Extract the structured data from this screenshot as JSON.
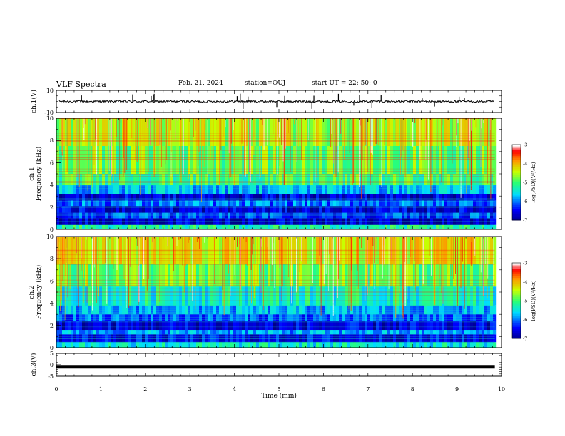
{
  "header": {
    "title": "VLF Spectra",
    "date": "Feb. 21, 2024",
    "station": "station=OUJ",
    "start": "start  UT  =   22: 50: 0"
  },
  "chart_data": [
    {
      "type": "line",
      "panel": "ch1-waveform",
      "ylabel": "ch.1(V)",
      "ylim": [
        -10,
        10
      ],
      "yticks": [
        "10",
        "-10"
      ],
      "description_values": {
        "baseline_v": 0,
        "typical_amplitude_v": 2,
        "spike_amplitude_v": 7
      },
      "x": [
        0,
        10
      ]
    },
    {
      "type": "heatmap",
      "panel": "ch1-spectrogram",
      "ylabel": "ch.1\nFrequency (kHz)",
      "ylim": [
        0,
        10
      ],
      "yticks": [
        "0",
        "2",
        "4",
        "6",
        "8",
        "10"
      ],
      "xlim": [
        0,
        9.85
      ],
      "colorbar": {
        "label": "log(PSD)(V²/Hz)",
        "range": [
          -7,
          -3
        ],
        "ticks": [
          "-3",
          "-4",
          "-5",
          "-6",
          "-7"
        ]
      },
      "bands_khz": [
        {
          "from": 0.0,
          "to": 0.4,
          "level": -5.2
        },
        {
          "from": 0.4,
          "to": 1.0,
          "level": -6.7
        },
        {
          "from": 1.0,
          "to": 1.5,
          "level": -6.2
        },
        {
          "from": 1.5,
          "to": 2.1,
          "level": -6.6
        },
        {
          "from": 2.1,
          "to": 2.6,
          "level": -6.0
        },
        {
          "from": 2.6,
          "to": 3.2,
          "level": -6.6
        },
        {
          "from": 3.2,
          "to": 4.0,
          "level": -5.7
        },
        {
          "from": 4.0,
          "to": 5.0,
          "level": -5.0
        },
        {
          "from": 5.0,
          "to": 7.5,
          "level": -4.8
        },
        {
          "from": 7.5,
          "to": 10.0,
          "level": -4.5
        }
      ]
    },
    {
      "type": "heatmap",
      "panel": "ch2-spectrogram",
      "ylabel": "ch.2\nFrequency (kHz)",
      "ylim": [
        0,
        10
      ],
      "yticks": [
        "0",
        "2",
        "4",
        "6",
        "8",
        "10"
      ],
      "xlim": [
        0,
        9.85
      ],
      "colorbar": {
        "label": "log(PSD)(V²/Hz)",
        "range": [
          -7,
          -3
        ],
        "ticks": [
          "-3",
          "-4",
          "-5",
          "-6",
          "-7"
        ]
      },
      "bands_khz": [
        {
          "from": 0.0,
          "to": 0.5,
          "level": -5.4
        },
        {
          "from": 0.5,
          "to": 1.2,
          "level": -6.5
        },
        {
          "from": 1.2,
          "to": 1.6,
          "level": -5.8
        },
        {
          "from": 1.6,
          "to": 2.4,
          "level": -6.6
        },
        {
          "from": 2.4,
          "to": 3.0,
          "level": -6.1
        },
        {
          "from": 3.0,
          "to": 3.8,
          "level": -5.8
        },
        {
          "from": 3.8,
          "to": 5.5,
          "level": -5.3
        },
        {
          "from": 5.5,
          "to": 7.5,
          "level": -4.8
        },
        {
          "from": 7.5,
          "to": 10.0,
          "level": -4.3
        }
      ]
    },
    {
      "type": "line",
      "panel": "ch3-waveform",
      "ylabel": "ch.3(V)",
      "ylim": [
        -5,
        5
      ],
      "yticks": [
        "5",
        "0",
        "-5"
      ],
      "x": [
        0,
        9.85
      ],
      "y": [
        -1,
        -1
      ],
      "xlabel": "Time (min)",
      "xticks": [
        "0",
        "1",
        "2",
        "3",
        "4",
        "5",
        "6",
        "7",
        "8",
        "9",
        "10"
      ]
    }
  ]
}
